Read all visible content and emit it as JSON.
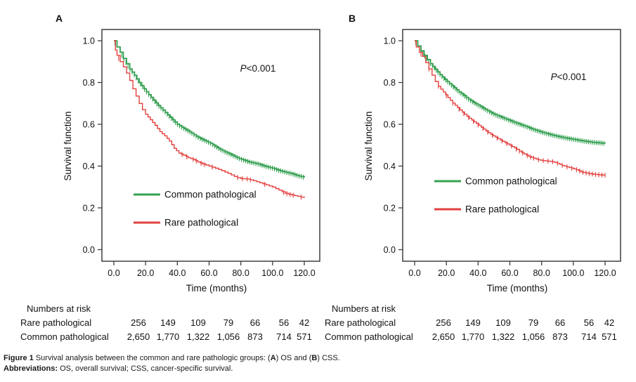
{
  "colors": {
    "common_pathological": "#35a052",
    "rare_pathological": "#e2413e",
    "axis": "#3f3f3f",
    "text": "#111111"
  },
  "chart_data": [
    {
      "panel": "A",
      "type": "line",
      "subtype": "kaplan-meier-survival",
      "title": "",
      "xlabel": "Time (months)",
      "ylabel": "Survival function",
      "xlim": [
        0,
        120
      ],
      "ylim": [
        0.0,
        1.0
      ],
      "xtick_values": [
        0,
        20,
        40,
        60,
        80,
        100,
        120
      ],
      "xtick_labels": [
        "0.0",
        "20.0",
        "40.0",
        "60.0",
        "80.0",
        "100.0",
        "120.0"
      ],
      "ytick_values": [
        0.0,
        0.2,
        0.4,
        0.6,
        0.8,
        1.0
      ],
      "ytick_labels": [
        "0.0",
        "0.2",
        "0.4",
        "0.6",
        "0.8",
        "1.0"
      ],
      "grid": false,
      "legend_position": "inside-lower-left",
      "annotation": {
        "italic": "P",
        "rest": "<0.001"
      },
      "series": [
        {
          "name": "Common pathological",
          "color": "#35a052",
          "points": [
            [
              0,
              1.0
            ],
            [
              2,
              0.97
            ],
            [
              4,
              0.945
            ],
            [
              6,
              0.915
            ],
            [
              8,
              0.89
            ],
            [
              10,
              0.865
            ],
            [
              13,
              0.835
            ],
            [
              16,
              0.8
            ],
            [
              19,
              0.77
            ],
            [
              22,
              0.742
            ],
            [
              25,
              0.716
            ],
            [
              28,
              0.69
            ],
            [
              31,
              0.668
            ],
            [
              34,
              0.645
            ],
            [
              37,
              0.622
            ],
            [
              40,
              0.6
            ],
            [
              43,
              0.585
            ],
            [
              46,
              0.572
            ],
            [
              49,
              0.558
            ],
            [
              52,
              0.542
            ],
            [
              55,
              0.53
            ],
            [
              58,
              0.52
            ],
            [
              61,
              0.508
            ],
            [
              64,
              0.494
            ],
            [
              67,
              0.48
            ],
            [
              70,
              0.468
            ],
            [
              73,
              0.458
            ],
            [
              76,
              0.447
            ],
            [
              79,
              0.436
            ],
            [
              82,
              0.428
            ],
            [
              85,
              0.42
            ],
            [
              88,
              0.415
            ],
            [
              91,
              0.41
            ],
            [
              94,
              0.402
            ],
            [
              97,
              0.396
            ],
            [
              100,
              0.39
            ],
            [
              103,
              0.382
            ],
            [
              106,
              0.375
            ],
            [
              109,
              0.369
            ],
            [
              112,
              0.364
            ],
            [
              115,
              0.356
            ],
            [
              118,
              0.35
            ],
            [
              120,
              0.345
            ]
          ],
          "censor": {
            "from": 5,
            "to": 120,
            "step": 1.3,
            "extra": [
              0.7
            ]
          }
        },
        {
          "name": "Rare pathological",
          "color": "#e2413e",
          "points": [
            [
              0,
              1.0
            ],
            [
              1,
              0.955
            ],
            [
              2,
              0.93
            ],
            [
              4,
              0.9
            ],
            [
              6,
              0.875
            ],
            [
              8,
              0.845
            ],
            [
              10,
              0.81
            ],
            [
              12,
              0.77
            ],
            [
              14,
              0.735
            ],
            [
              16,
              0.7
            ],
            [
              18,
              0.67
            ],
            [
              20,
              0.648
            ],
            [
              23,
              0.622
            ],
            [
              26,
              0.595
            ],
            [
              29,
              0.565
            ],
            [
              32,
              0.545
            ],
            [
              35,
              0.52
            ],
            [
              38,
              0.485
            ],
            [
              41,
              0.462
            ],
            [
              44,
              0.452
            ],
            [
              47,
              0.44
            ],
            [
              50,
              0.432
            ],
            [
              53,
              0.42
            ],
            [
              56,
              0.41
            ],
            [
              60,
              0.4
            ],
            [
              64,
              0.39
            ],
            [
              68,
              0.378
            ],
            [
              72,
              0.365
            ],
            [
              76,
              0.35
            ],
            [
              80,
              0.34
            ],
            [
              84,
              0.338
            ],
            [
              88,
              0.33
            ],
            [
              92,
              0.32
            ],
            [
              96,
              0.31
            ],
            [
              100,
              0.3
            ],
            [
              104,
              0.285
            ],
            [
              108,
              0.27
            ],
            [
              112,
              0.262
            ],
            [
              116,
              0.255
            ],
            [
              120,
              0.248
            ]
          ],
          "censor": {
            "times": [
              3,
              43,
              46,
              50,
              52,
              55,
              57,
              62,
              78,
              81,
              84,
              86,
              95,
              107,
              109,
              111,
              113,
              118
            ]
          }
        }
      ],
      "numbers_at_risk": {
        "header": "Numbers at risk",
        "rows": [
          {
            "label": "Rare pathological",
            "values": [
              "256",
              "149",
              "109",
              "79",
              "66",
              "56",
              "42"
            ]
          },
          {
            "label": "Common pathological",
            "values": [
              "2,650",
              "1,770",
              "1,322",
              "1,056",
              "873",
              "714",
              "571"
            ]
          }
        ]
      }
    },
    {
      "panel": "B",
      "type": "line",
      "subtype": "kaplan-meier-survival",
      "title": "",
      "xlabel": "Time (months)",
      "ylabel": "Survival function",
      "xlim": [
        0,
        120
      ],
      "ylim": [
        0.0,
        1.0
      ],
      "xtick_values": [
        0,
        20,
        40,
        60,
        80,
        100,
        120
      ],
      "xtick_labels": [
        "0.0",
        "20.0",
        "40.0",
        "60.0",
        "80.0",
        "100.0",
        "120.0"
      ],
      "ytick_values": [
        0.0,
        0.2,
        0.4,
        0.6,
        0.8,
        1.0
      ],
      "ytick_labels": [
        "0.0",
        "0.2",
        "0.4",
        "0.6",
        "0.8",
        "1.0"
      ],
      "grid": false,
      "legend_position": "inside-lower-left",
      "annotation": {
        "italic": "P",
        "rest": "<0.001"
      },
      "series": [
        {
          "name": "Common pathological",
          "color": "#35a052",
          "points": [
            [
              0,
              1.0
            ],
            [
              2,
              0.975
            ],
            [
              4,
              0.952
            ],
            [
              6,
              0.93
            ],
            [
              8,
              0.91
            ],
            [
              10,
              0.89
            ],
            [
              13,
              0.864
            ],
            [
              16,
              0.838
            ],
            [
              19,
              0.815
            ],
            [
              22,
              0.795
            ],
            [
              25,
              0.775
            ],
            [
              28,
              0.755
            ],
            [
              31,
              0.738
            ],
            [
              34,
              0.72
            ],
            [
              37,
              0.705
            ],
            [
              40,
              0.692
            ],
            [
              43,
              0.678
            ],
            [
              46,
              0.665
            ],
            [
              49,
              0.652
            ],
            [
              52,
              0.642
            ],
            [
              55,
              0.633
            ],
            [
              58,
              0.624
            ],
            [
              61,
              0.615
            ],
            [
              64,
              0.606
            ],
            [
              67,
              0.598
            ],
            [
              70,
              0.59
            ],
            [
              73,
              0.581
            ],
            [
              76,
              0.572
            ],
            [
              79,
              0.565
            ],
            [
              82,
              0.558
            ],
            [
              85,
              0.552
            ],
            [
              88,
              0.546
            ],
            [
              91,
              0.541
            ],
            [
              94,
              0.536
            ],
            [
              97,
              0.532
            ],
            [
              100,
              0.528
            ],
            [
              103,
              0.524
            ],
            [
              106,
              0.52
            ],
            [
              109,
              0.517
            ],
            [
              112,
              0.514
            ],
            [
              115,
              0.512
            ],
            [
              118,
              0.51
            ],
            [
              120,
              0.508
            ]
          ],
          "censor": {
            "from": 4,
            "to": 120,
            "step": 1.2,
            "extra": [
              0.7
            ]
          }
        },
        {
          "name": "Rare pathological",
          "color": "#e2413e",
          "points": [
            [
              0,
              1.0
            ],
            [
              1,
              0.97
            ],
            [
              3,
              0.945
            ],
            [
              5,
              0.925
            ],
            [
              7,
              0.895
            ],
            [
              9,
              0.865
            ],
            [
              11,
              0.835
            ],
            [
              13,
              0.805
            ],
            [
              15,
              0.782
            ],
            [
              18,
              0.755
            ],
            [
              21,
              0.728
            ],
            [
              24,
              0.702
            ],
            [
              27,
              0.68
            ],
            [
              30,
              0.658
            ],
            [
              33,
              0.638
            ],
            [
              36,
              0.62
            ],
            [
              39,
              0.603
            ],
            [
              42,
              0.586
            ],
            [
              45,
              0.568
            ],
            [
              48,
              0.552
            ],
            [
              51,
              0.538
            ],
            [
              54,
              0.525
            ],
            [
              57,
              0.512
            ],
            [
              60,
              0.5
            ],
            [
              63,
              0.487
            ],
            [
              66,
              0.472
            ],
            [
              69,
              0.458
            ],
            [
              72,
              0.446
            ],
            [
              75,
              0.438
            ],
            [
              78,
              0.43
            ],
            [
              81,
              0.426
            ],
            [
              84,
              0.424
            ],
            [
              87,
              0.421
            ],
            [
              90,
              0.413
            ],
            [
              93,
              0.403
            ],
            [
              96,
              0.396
            ],
            [
              99,
              0.39
            ],
            [
              102,
              0.383
            ],
            [
              105,
              0.372
            ],
            [
              108,
              0.367
            ],
            [
              111,
              0.363
            ],
            [
              114,
              0.36
            ],
            [
              117,
              0.358
            ],
            [
              120,
              0.356
            ]
          ],
          "censor": {
            "times": [
              4,
              9,
              15,
              20,
              24,
              28,
              31,
              34,
              37,
              40,
              43,
              46,
              49,
              52,
              55,
              58,
              61,
              64,
              66,
              68,
              71,
              73,
              75,
              78,
              81,
              84,
              87,
              90,
              93,
              96,
              99,
              102,
              104,
              106,
              108,
              110,
              112,
              114,
              116,
              118,
              120
            ]
          }
        }
      ],
      "numbers_at_risk": {
        "header": "Numbers at risk",
        "rows": [
          {
            "label": "Rare pathological",
            "values": [
              "256",
              "149",
              "109",
              "79",
              "66",
              "56",
              "42"
            ]
          },
          {
            "label": "Common pathological",
            "values": [
              "2,650",
              "1,770",
              "1,322",
              "1,056",
              "873",
              "714",
              "571"
            ]
          }
        ]
      }
    }
  ],
  "caption": {
    "line1": [
      {
        "text": "Figure 1 ",
        "bold": true
      },
      {
        "text": "Survival analysis between the common and rare pathologic groups: (",
        "bold": false
      },
      {
        "text": "A",
        "bold": true
      },
      {
        "text": ") OS and (",
        "bold": false
      },
      {
        "text": "B",
        "bold": true
      },
      {
        "text": ") CSS.",
        "bold": false
      }
    ],
    "line2": [
      {
        "text": "Abbreviations: ",
        "bold": true
      },
      {
        "text": "OS, overall survival; CSS, cancer-specific survival.",
        "bold": false
      }
    ]
  }
}
